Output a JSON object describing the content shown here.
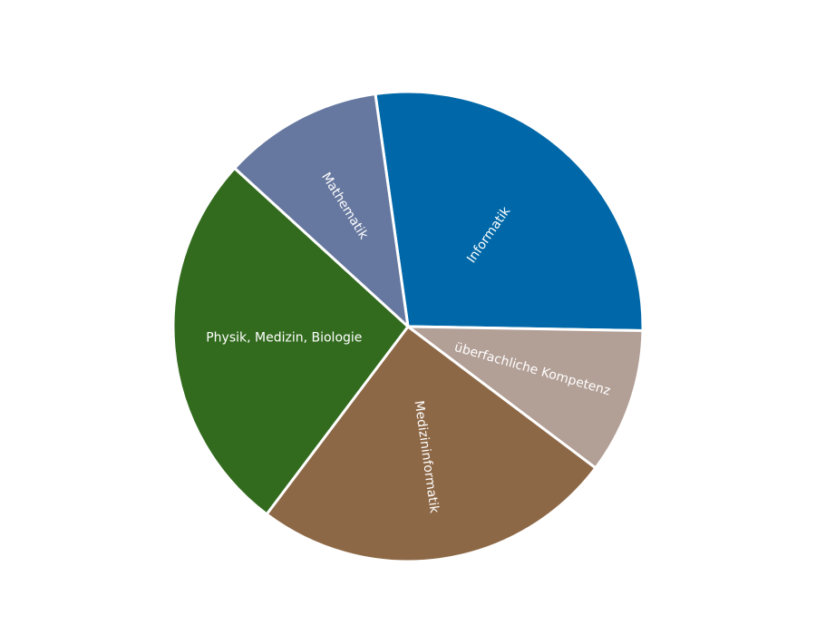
{
  "chart_data": {
    "type": "pie",
    "title": "",
    "slices": [
      {
        "label": "Informatik",
        "value": 27.5,
        "color": "#0068a8"
      },
      {
        "label": "überfachliche Kompetenz",
        "value": 10.0,
        "color": "#b29f96"
      },
      {
        "label": "Medizininformatik",
        "value": 25.0,
        "color": "#8d6846"
      },
      {
        "label": "Physik, Medizin, Biologie",
        "value": 26.5,
        "color": "#326b1e"
      },
      {
        "label": "Mathematik",
        "value": 11.0,
        "color": "#66789f"
      }
    ],
    "legend": "none",
    "start_angle": "slightly left of top, clockwise"
  }
}
